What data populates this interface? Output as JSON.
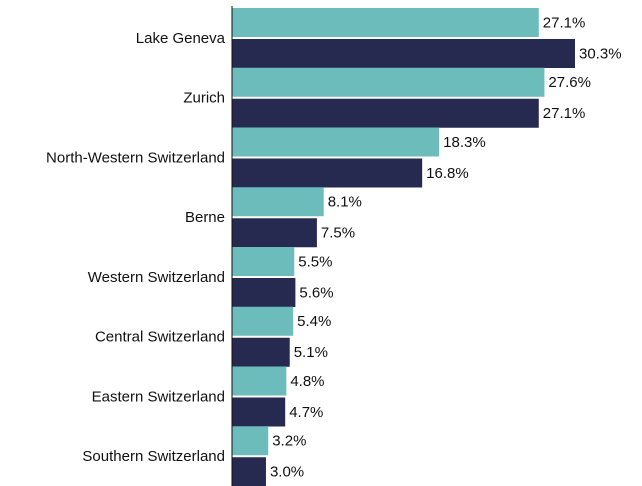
{
  "chart_data": {
    "type": "bar",
    "orientation": "horizontal",
    "categories": [
      "Lake Geneva",
      "Zurich",
      "North-Western Switzerland",
      "Berne",
      "Western Switzerland",
      "Central Switzerland",
      "Eastern Switzerland",
      "Southern Switzerland"
    ],
    "series": [
      {
        "color": "#6cbcbb",
        "values": [
          27.1,
          27.6,
          18.3,
          8.1,
          5.5,
          5.4,
          4.8,
          3.2
        ],
        "value_labels": [
          "27.1%",
          "27.6%",
          "18.3%",
          "8.1%",
          "5.5%",
          "5.4%",
          "4.8%",
          "3.2%"
        ]
      },
      {
        "color": "#262a50",
        "values": [
          30.3,
          27.1,
          16.8,
          7.5,
          5.6,
          5.1,
          4.7,
          3.0
        ],
        "value_labels": [
          "30.3%",
          "27.1%",
          "16.8%",
          "7.5%",
          "5.6%",
          "5.1%",
          "4.7%",
          "3.0%"
        ]
      }
    ]
  }
}
